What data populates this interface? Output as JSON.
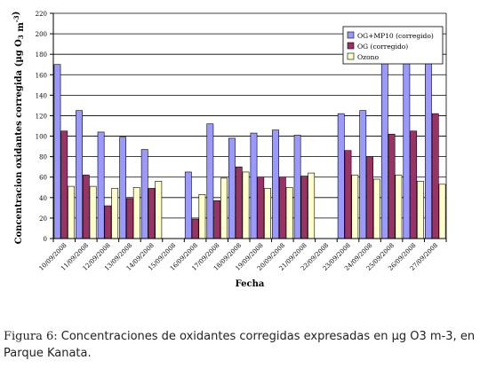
{
  "chart_data": {
    "type": "bar",
    "xlabel": "Fecha",
    "ylabel": "Concentracion oxidantes corregida (µg O3 m-3)",
    "ylim": [
      0,
      220
    ],
    "yticks": [
      0,
      20,
      40,
      60,
      80,
      100,
      120,
      140,
      160,
      180,
      200,
      220
    ],
    "grid": true,
    "legend_position": "top-right",
    "categories": [
      "10/09/2008",
      "11/09/2008",
      "12/09/2008",
      "13/09/2008",
      "14/09/2008",
      "15/09/2008",
      "16/09/2008",
      "17/09/2008",
      "18/09/2008",
      "19/09/2008",
      "20/09/2008",
      "21/09/2008",
      "22/09/2008",
      "23/09/2008",
      "24/09/2008",
      "25/09/2008",
      "26/09/2008",
      "27/09/2008"
    ],
    "series": [
      {
        "name": "OG+MP10 (corregido)",
        "color": "#9999ff",
        "values": [
          170,
          125,
          104,
          99,
          87,
          null,
          65,
          112,
          98,
          103,
          106,
          101,
          null,
          122,
          125,
          179,
          200,
          199
        ]
      },
      {
        "name": "OG (corregido)",
        "color": "#993366",
        "values": [
          105,
          62,
          32,
          39,
          49,
          null,
          19,
          37,
          70,
          60,
          60,
          61,
          null,
          86,
          80,
          102,
          105,
          122
        ]
      },
      {
        "name": "Ozono",
        "color": "#ffffcc",
        "values": [
          51,
          51,
          49,
          50,
          56,
          null,
          43,
          59,
          65,
          49,
          50,
          64,
          null,
          62,
          58,
          62,
          56,
          53
        ]
      }
    ]
  },
  "caption": {
    "label": "Figura 6:",
    "text": " Concentraciones de oxidantes corregidas expresadas en µg O3 m-3, en Parque Kanata."
  }
}
